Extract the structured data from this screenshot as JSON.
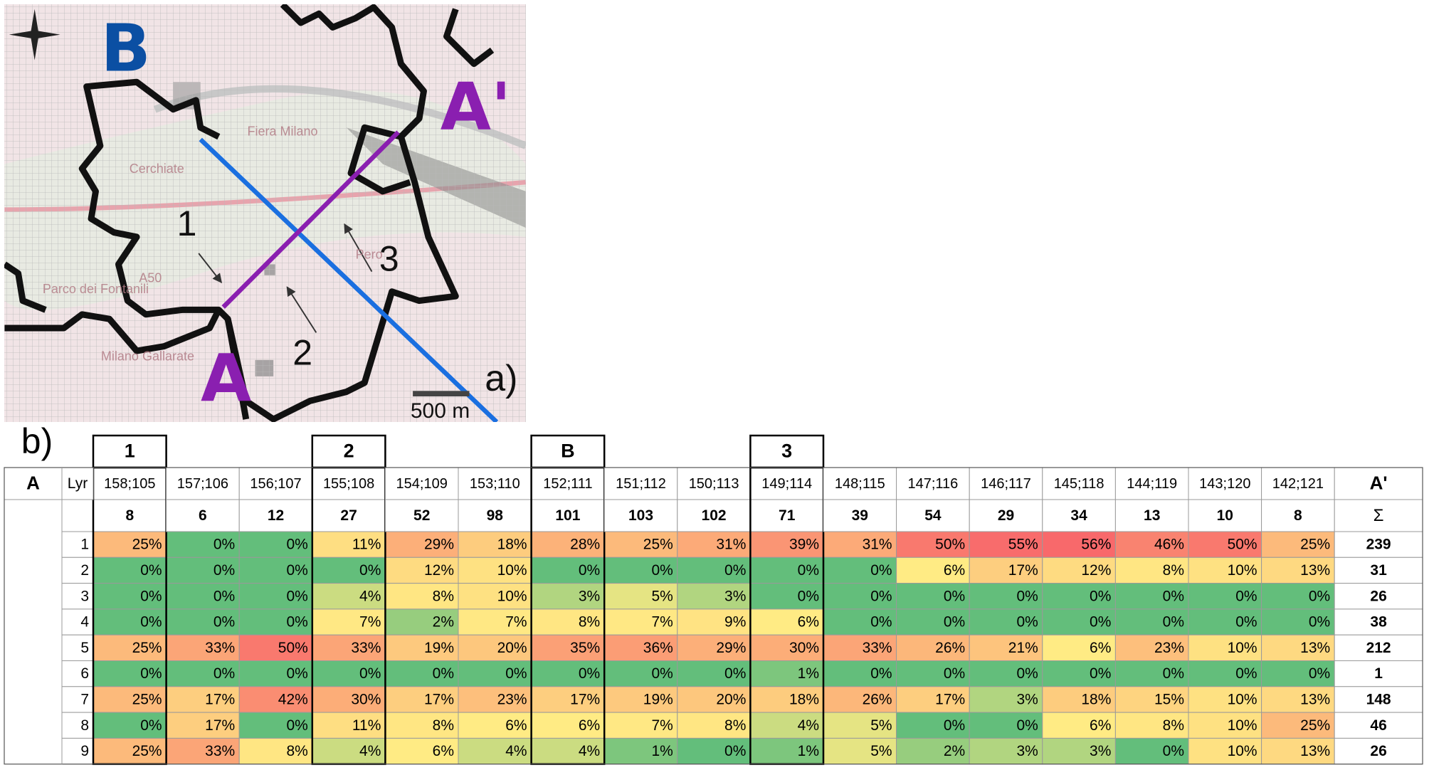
{
  "map": {
    "points": {
      "a": "A",
      "a_end": "A'",
      "b": "B"
    },
    "sites": [
      "1",
      "2",
      "3"
    ],
    "scale_bar": "500 m",
    "panel_label": "a)",
    "places": [
      "Fiera Milano",
      "Cerchiate",
      "Pero",
      "A50",
      "Parco dei Fontanili",
      "Milano Gallarate"
    ]
  },
  "table": {
    "panel_label": "b)",
    "start": "A",
    "layer_header": "Lyr",
    "end": "A'",
    "sum_header": "Σ",
    "columns": [
      {
        "id": "158;105",
        "count": 8,
        "marker": "1"
      },
      {
        "id": "157;106",
        "count": 6
      },
      {
        "id": "156;107",
        "count": 12
      },
      {
        "id": "155;108",
        "count": 27,
        "marker": "2"
      },
      {
        "id": "154;109",
        "count": 52
      },
      {
        "id": "153;110",
        "count": 98
      },
      {
        "id": "152;111",
        "count": 101,
        "marker": "B"
      },
      {
        "id": "151;112",
        "count": 103
      },
      {
        "id": "150;113",
        "count": 102
      },
      {
        "id": "149;114",
        "count": 71,
        "marker": "3"
      },
      {
        "id": "148;115",
        "count": 39
      },
      {
        "id": "147;116",
        "count": 54
      },
      {
        "id": "146;117",
        "count": 29
      },
      {
        "id": "145;118",
        "count": 34
      },
      {
        "id": "144;119",
        "count": 13
      },
      {
        "id": "143;120",
        "count": 10
      },
      {
        "id": "142;121",
        "count": 8
      }
    ],
    "rows": [
      {
        "layer": 1,
        "cells": [
          "25%",
          "0%",
          "0%",
          "11%",
          "29%",
          "18%",
          "28%",
          "25%",
          "31%",
          "39%",
          "31%",
          "50%",
          "55%",
          "56%",
          "46%",
          "50%",
          "25%"
        ],
        "sum": 239
      },
      {
        "layer": 2,
        "cells": [
          "0%",
          "0%",
          "0%",
          "0%",
          "12%",
          "10%",
          "0%",
          "0%",
          "0%",
          "0%",
          "0%",
          "6%",
          "17%",
          "12%",
          "8%",
          "10%",
          "13%"
        ],
        "sum": 31
      },
      {
        "layer": 3,
        "cells": [
          "0%",
          "0%",
          "0%",
          "4%",
          "8%",
          "10%",
          "3%",
          "5%",
          "3%",
          "0%",
          "0%",
          "0%",
          "0%",
          "0%",
          "0%",
          "0%",
          "0%"
        ],
        "sum": 26
      },
      {
        "layer": 4,
        "cells": [
          "0%",
          "0%",
          "0%",
          "7%",
          "2%",
          "7%",
          "8%",
          "7%",
          "9%",
          "6%",
          "0%",
          "0%",
          "0%",
          "0%",
          "0%",
          "0%",
          "0%"
        ],
        "sum": 38
      },
      {
        "layer": 5,
        "cells": [
          "25%",
          "33%",
          "50%",
          "33%",
          "19%",
          "20%",
          "35%",
          "36%",
          "29%",
          "30%",
          "33%",
          "26%",
          "21%",
          "6%",
          "23%",
          "10%",
          "13%"
        ],
        "sum": 212
      },
      {
        "layer": 6,
        "cells": [
          "0%",
          "0%",
          "0%",
          "0%",
          "0%",
          "0%",
          "0%",
          "0%",
          "0%",
          "1%",
          "0%",
          "0%",
          "0%",
          "0%",
          "0%",
          "0%",
          "0%"
        ],
        "sum": 1
      },
      {
        "layer": 7,
        "cells": [
          "25%",
          "17%",
          "42%",
          "30%",
          "17%",
          "23%",
          "17%",
          "19%",
          "20%",
          "18%",
          "26%",
          "17%",
          "3%",
          "18%",
          "15%",
          "10%",
          "13%"
        ],
        "sum": 148
      },
      {
        "layer": 8,
        "cells": [
          "0%",
          "17%",
          "0%",
          "11%",
          "8%",
          "6%",
          "6%",
          "7%",
          "8%",
          "4%",
          "5%",
          "0%",
          "0%",
          "6%",
          "8%",
          "10%",
          "25%"
        ],
        "sum": 46
      },
      {
        "layer": 9,
        "cells": [
          "25%",
          "33%",
          "8%",
          "4%",
          "6%",
          "4%",
          "4%",
          "1%",
          "0%",
          "1%",
          "5%",
          "2%",
          "3%",
          "3%",
          "0%",
          "10%",
          "13%"
        ],
        "sum": 26
      }
    ]
  }
}
